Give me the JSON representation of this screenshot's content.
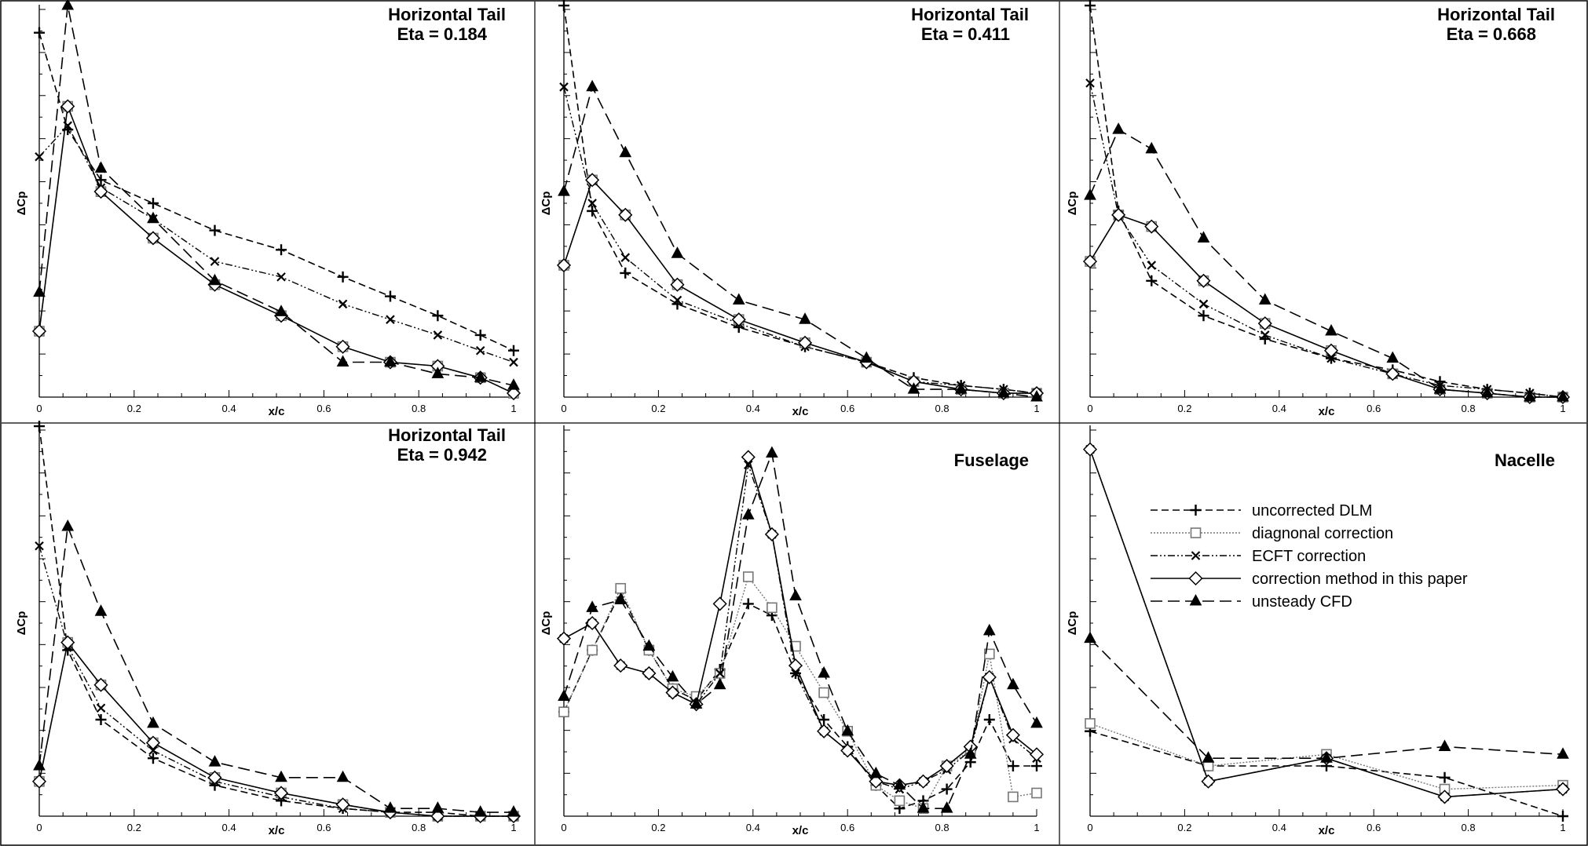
{
  "colors": {
    "background": "#ffffff",
    "axis": "#000000",
    "diag": "#777777",
    "line": "#000000"
  },
  "legend": {
    "panel": 5,
    "entries": [
      {
        "key": "dlm",
        "label": "uncorrected DLM"
      },
      {
        "key": "diag",
        "label": "diagnonal correction"
      },
      {
        "key": "ecft",
        "label": "ECFT correction"
      },
      {
        "key": "paper",
        "label": "correction method in this paper"
      },
      {
        "key": "cfd",
        "label": "unsteady CFD"
      }
    ]
  },
  "chart_data": [
    {
      "type": "line",
      "title": "Horizontal Tail",
      "subtitle": "Eta = 0.184",
      "xlabel": "x/c",
      "ylabel": "ΔCp",
      "xlim": [
        0,
        1
      ],
      "ylim": [
        0,
        1
      ],
      "xticks": [
        "0",
        "0.2",
        "0.4",
        "0.6",
        "0.8",
        "1"
      ],
      "yticks_labeled": false,
      "x": [
        0,
        0.06,
        0.13,
        0.24,
        0.37,
        0.51,
        0.64,
        0.74,
        0.84,
        0.93,
        1.0
      ],
      "series": [
        {
          "key": "dlm",
          "name": "uncorrected DLM",
          "values": [
            0.94,
            0.69,
            0.56,
            0.5,
            0.43,
            0.38,
            0.31,
            0.26,
            0.21,
            0.16,
            0.12
          ]
        },
        {
          "key": "diag",
          "name": "diagnonal correction",
          "values": [
            0.17,
            0.75,
            0.53,
            0.41,
            0.29,
            0.21,
            0.13,
            0.09,
            0.08,
            0.05,
            0.01
          ]
        },
        {
          "key": "ecft",
          "name": "ECFT correction",
          "values": [
            0.62,
            0.7,
            0.54,
            0.46,
            0.35,
            0.31,
            0.24,
            0.2,
            0.16,
            0.12,
            0.09
          ]
        },
        {
          "key": "paper",
          "name": "correction method in this paper",
          "values": [
            0.17,
            0.75,
            0.53,
            0.41,
            0.29,
            0.21,
            0.13,
            0.09,
            0.08,
            0.05,
            0.01
          ]
        },
        {
          "key": "cfd",
          "name": "unsteady CFD",
          "values": [
            0.27,
            1.01,
            0.59,
            0.46,
            0.3,
            0.22,
            0.09,
            0.09,
            0.06,
            0.05,
            0.03
          ]
        }
      ]
    },
    {
      "type": "line",
      "title": "Horizontal Tail",
      "subtitle": "Eta = 0.411",
      "xlabel": "x/c",
      "ylabel": "ΔCp",
      "xlim": [
        0,
        1
      ],
      "ylim": [
        0,
        1
      ],
      "xticks": [
        "0",
        "0.2",
        "0.4",
        "0.6",
        "0.8",
        "1"
      ],
      "yticks_labeled": false,
      "x": [
        0,
        0.06,
        0.13,
        0.24,
        0.37,
        0.51,
        0.64,
        0.74,
        0.84,
        0.93,
        1.0
      ],
      "series": [
        {
          "key": "dlm",
          "name": "uncorrected DLM",
          "values": [
            1.01,
            0.48,
            0.32,
            0.24,
            0.18,
            0.13,
            0.09,
            0.05,
            0.03,
            0.02,
            0.01
          ]
        },
        {
          "key": "diag",
          "name": "diagnonal correction",
          "values": [
            0.34,
            0.56,
            0.47,
            0.29,
            0.2,
            0.14,
            0.09,
            0.04,
            0.02,
            0.01,
            0.01
          ]
        },
        {
          "key": "ecft",
          "name": "ECFT correction",
          "values": [
            0.8,
            0.5,
            0.36,
            0.25,
            0.19,
            0.13,
            0.09,
            0.04,
            0.03,
            0.02,
            0.01
          ]
        },
        {
          "key": "paper",
          "name": "correction method in this paper",
          "values": [
            0.34,
            0.56,
            0.47,
            0.29,
            0.2,
            0.14,
            0.09,
            0.04,
            0.02,
            0.01,
            0.01
          ]
        },
        {
          "key": "cfd",
          "name": "unsteady CFD",
          "values": [
            0.53,
            0.8,
            0.63,
            0.37,
            0.25,
            0.2,
            0.1,
            0.02,
            0.02,
            0.01,
            0.0
          ]
        }
      ]
    },
    {
      "type": "line",
      "title": "Horizontal Tail",
      "subtitle": "Eta = 0.668",
      "xlabel": "x/c",
      "ylabel": "ΔCp",
      "xlim": [
        0,
        1
      ],
      "ylim": [
        0,
        1
      ],
      "xticks": [
        "0",
        "0.2",
        "0.4",
        "0.6",
        "0.8",
        "1"
      ],
      "yticks_labeled": false,
      "x": [
        0,
        0.06,
        0.13,
        0.24,
        0.37,
        0.51,
        0.64,
        0.74,
        0.84,
        0.93,
        1.0
      ],
      "series": [
        {
          "key": "dlm",
          "name": "uncorrected DLM",
          "values": [
            1.01,
            0.48,
            0.3,
            0.21,
            0.15,
            0.1,
            0.07,
            0.04,
            0.02,
            0.01,
            0.0
          ]
        },
        {
          "key": "diag",
          "name": "diagnonal correction",
          "values": [
            0.35,
            0.47,
            0.44,
            0.3,
            0.19,
            0.12,
            0.06,
            0.02,
            0.01,
            0.0,
            0.0
          ]
        },
        {
          "key": "ecft",
          "name": "ECFT correction",
          "values": [
            0.81,
            0.47,
            0.34,
            0.24,
            0.16,
            0.1,
            0.06,
            0.03,
            0.02,
            0.01,
            0.0
          ]
        },
        {
          "key": "paper",
          "name": "correction method in this paper",
          "values": [
            0.35,
            0.47,
            0.44,
            0.3,
            0.19,
            0.12,
            0.06,
            0.02,
            0.01,
            0.0,
            0.0
          ]
        },
        {
          "key": "cfd",
          "name": "unsteady CFD",
          "values": [
            0.52,
            0.69,
            0.64,
            0.41,
            0.25,
            0.17,
            0.1,
            0.02,
            0.01,
            0.0,
            0.0
          ]
        }
      ]
    },
    {
      "type": "line",
      "title": "Horizontal Tail",
      "subtitle": "Eta = 0.942",
      "xlabel": "x/c",
      "ylabel": "ΔCp",
      "xlim": [
        0,
        1
      ],
      "ylim": [
        0,
        1
      ],
      "xticks": [
        "0",
        "0.2",
        "0.4",
        "0.6",
        "0.8",
        "1"
      ],
      "yticks_labeled": false,
      "x": [
        0,
        0.06,
        0.13,
        0.24,
        0.37,
        0.51,
        0.64,
        0.74,
        0.84,
        0.93,
        1.0
      ],
      "series": [
        {
          "key": "dlm",
          "name": "uncorrected DLM",
          "values": [
            1.01,
            0.43,
            0.25,
            0.15,
            0.08,
            0.04,
            0.02,
            0.01,
            0.01,
            0.0,
            0.0
          ]
        },
        {
          "key": "diag",
          "name": "diagnonal correction",
          "values": [
            0.09,
            0.45,
            0.34,
            0.19,
            0.1,
            0.06,
            0.03,
            0.01,
            0.0,
            0.0,
            0.0
          ]
        },
        {
          "key": "ecft",
          "name": "ECFT correction",
          "values": [
            0.7,
            0.44,
            0.28,
            0.17,
            0.09,
            0.05,
            0.02,
            0.01,
            0.0,
            0.0,
            0.0
          ]
        },
        {
          "key": "paper",
          "name": "correction method in this paper",
          "values": [
            0.09,
            0.45,
            0.34,
            0.19,
            0.1,
            0.06,
            0.03,
            0.01,
            0.0,
            0.0,
            0.0
          ]
        },
        {
          "key": "cfd",
          "name": "unsteady CFD",
          "values": [
            0.13,
            0.75,
            0.53,
            0.24,
            0.14,
            0.1,
            0.1,
            0.02,
            0.02,
            0.01,
            0.01
          ]
        }
      ]
    },
    {
      "type": "line",
      "title": "Fuselage",
      "subtitle": "",
      "xlabel": "x/c",
      "ylabel": "ΔCp",
      "xlim": [
        0,
        1
      ],
      "ylim": [
        0,
        1
      ],
      "xticks": [
        "0",
        "0.2",
        "0.4",
        "0.6",
        "0.8",
        "1"
      ],
      "yticks_labeled": false,
      "x": [
        0,
        0.06,
        0.12,
        0.18,
        0.23,
        0.28,
        0.33,
        0.39,
        0.44,
        0.49,
        0.55,
        0.6,
        0.66,
        0.71,
        0.76,
        0.81,
        0.86,
        0.9,
        0.95,
        1.0
      ],
      "series": [
        {
          "key": "dlm",
          "name": "uncorrected DLM",
          "values": [
            0.27,
            0.43,
            0.58,
            0.43,
            0.33,
            0.3,
            0.38,
            0.55,
            0.52,
            0.37,
            0.25,
            0.18,
            0.08,
            0.02,
            0.04,
            0.07,
            0.14,
            0.25,
            0.13,
            0.13
          ]
        },
        {
          "key": "diag",
          "name": "diagnonal correction",
          "values": [
            0.27,
            0.43,
            0.59,
            0.43,
            0.33,
            0.31,
            0.37,
            0.62,
            0.54,
            0.44,
            0.32,
            0.22,
            0.08,
            0.04,
            0.02,
            0.13,
            0.17,
            0.42,
            0.05,
            0.06
          ]
        },
        {
          "key": "ecft",
          "name": "ECFT correction",
          "values": [
            0.46,
            0.5,
            0.39,
            0.37,
            0.32,
            0.29,
            0.37,
            0.91,
            0.73,
            0.37,
            0.22,
            0.17,
            0.09,
            0.07,
            0.09,
            0.12,
            0.17,
            0.36,
            0.2,
            0.15
          ]
        },
        {
          "key": "paper",
          "name": "correction method in this paper",
          "values": [
            0.46,
            0.5,
            0.39,
            0.37,
            0.32,
            0.29,
            0.55,
            0.93,
            0.73,
            0.39,
            0.22,
            0.17,
            0.09,
            0.08,
            0.09,
            0.13,
            0.18,
            0.36,
            0.21,
            0.16
          ]
        },
        {
          "key": "cfd",
          "name": "unsteady CFD",
          "values": [
            0.31,
            0.54,
            0.56,
            0.44,
            0.36,
            0.29,
            0.34,
            0.78,
            0.94,
            0.57,
            0.37,
            0.22,
            0.11,
            0.08,
            0.02,
            0.02,
            0.16,
            0.48,
            0.34,
            0.24
          ]
        }
      ]
    },
    {
      "type": "line",
      "title": "Nacelle",
      "subtitle": "",
      "xlabel": "x/c",
      "ylabel": "ΔCp",
      "xlim": [
        0,
        1
      ],
      "ylim": [
        0,
        1
      ],
      "xticks": [
        "0",
        "0.2",
        "0.4",
        "0.6",
        "0.8",
        "1"
      ],
      "yticks_labeled": false,
      "x": [
        0,
        0.25,
        0.5,
        0.75,
        1.0
      ],
      "series": [
        {
          "key": "dlm",
          "name": "uncorrected DLM",
          "values": [
            0.22,
            0.13,
            0.13,
            0.1,
            0.0
          ]
        },
        {
          "key": "diag",
          "name": "diagnonal correction",
          "values": [
            0.24,
            0.13,
            0.16,
            0.07,
            0.08
          ]
        },
        {
          "key": "ecft",
          "name": "ECFT correction",
          "values": [
            0.95,
            0.09,
            0.15,
            0.05,
            0.07
          ]
        },
        {
          "key": "paper",
          "name": "correction method in this paper",
          "values": [
            0.95,
            0.09,
            0.15,
            0.05,
            0.07
          ]
        },
        {
          "key": "cfd",
          "name": "unsteady CFD",
          "values": [
            0.46,
            0.15,
            0.15,
            0.18,
            0.16
          ]
        }
      ]
    }
  ]
}
